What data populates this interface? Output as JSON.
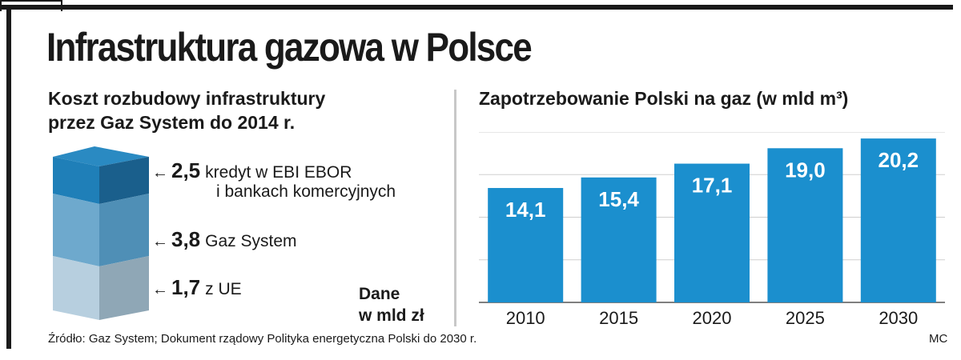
{
  "title": "Infrastruktura gazowa w Polsce",
  "left_panel": {
    "title_line1": "Koszt rozbudowy infrastruktury",
    "title_line2": "przez Gaz System do 2014 r.",
    "unit_line1": "Dane",
    "unit_line2": "w mld zł",
    "arrow": "←",
    "segments": [
      {
        "value": "2,5",
        "label": "kredyt w EBI EBOR",
        "label2": "i bankach komercyjnych",
        "color": "#1f7fb8"
      },
      {
        "value": "3,8",
        "label": "Gaz System",
        "color": "#6ea9cd"
      },
      {
        "value": "1,7",
        "label": "z UE",
        "color": "#a9c8dc"
      }
    ]
  },
  "chart_data": {
    "type": "bar",
    "title": "Zapotrzebowanie Polski na gaz (w mld m³)",
    "categories": [
      "2010",
      "2015",
      "2020",
      "2025",
      "2030"
    ],
    "values": [
      14.1,
      15.4,
      17.1,
      19.0,
      20.2
    ],
    "value_labels": [
      "14,1",
      "15,4",
      "17,1",
      "19,0",
      "20,2"
    ],
    "ylim": [
      0,
      21
    ],
    "grid": true,
    "bar_color": "#1b8fce",
    "xlabel": "",
    "ylabel": ""
  },
  "footer": "Źródło: Gaz System; Dokument rządowy  Polityka energetyczna Polski do 2030 r.",
  "credit": "MC"
}
